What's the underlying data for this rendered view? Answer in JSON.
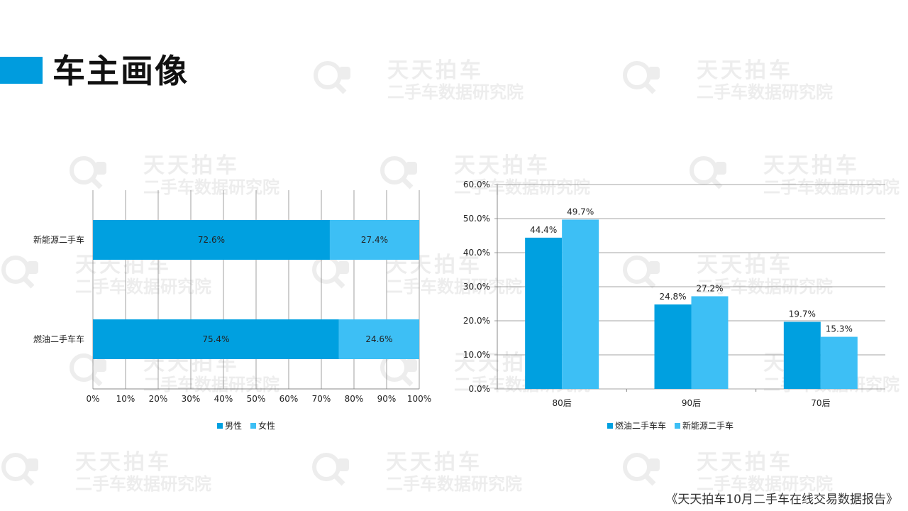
{
  "page": {
    "title": "车主画像",
    "footer": "《天天拍车10月二手车在线交易数据报告》",
    "accent_color": "#009CDE"
  },
  "watermark": {
    "line1": "天天拍车",
    "line2": "二手车数据研究院",
    "icon": "magnifier-car-logo"
  },
  "colors": {
    "primary": "#00A0E0",
    "secondary": "#3DBFF5",
    "grid": "#888888"
  },
  "chart_data": [
    {
      "type": "bar",
      "orientation": "horizontal",
      "stacked": "percent",
      "categories": [
        "新能源二手车",
        "燃油二手车车"
      ],
      "series": [
        {
          "name": "男性",
          "values": [
            72.6,
            75.4
          ],
          "labels": [
            "72.6%",
            "75.4%"
          ]
        },
        {
          "name": "女性",
          "values": [
            27.4,
            24.6
          ],
          "labels": [
            "27.4%",
            "24.6%"
          ]
        }
      ],
      "xlim": [
        0,
        100
      ],
      "xticks": [
        "0%",
        "10%",
        "20%",
        "30%",
        "40%",
        "50%",
        "60%",
        "70%",
        "80%",
        "90%",
        "100%"
      ],
      "grid": true,
      "legend": "bottom"
    },
    {
      "type": "bar",
      "orientation": "vertical",
      "categories": [
        "80后",
        "90后",
        "70后"
      ],
      "series": [
        {
          "name": "燃油二手车车",
          "values": [
            44.4,
            24.8,
            19.7
          ],
          "labels": [
            "44.4%",
            "24.8%",
            "19.7%"
          ]
        },
        {
          "name": "新能源二手车",
          "values": [
            49.7,
            27.2,
            15.3
          ],
          "labels": [
            "49.7%",
            "27.2%",
            "15.3%"
          ]
        }
      ],
      "ylim": [
        0,
        60
      ],
      "yticks": [
        "0.0%",
        "10.0%",
        "20.0%",
        "30.0%",
        "40.0%",
        "50.0%",
        "60.0%"
      ],
      "grid": true,
      "legend": "bottom"
    }
  ]
}
